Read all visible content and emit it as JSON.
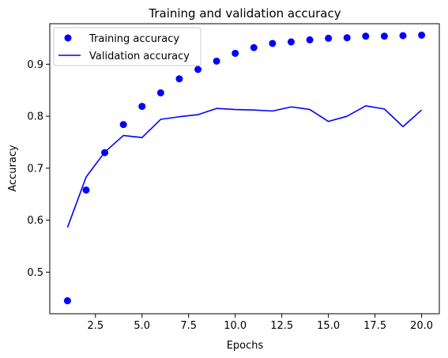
{
  "chart_data": {
    "type": "line",
    "title": "Training and validation accuracy",
    "xlabel": "Epochs",
    "ylabel": "Accuracy",
    "xlim": [
      0.05,
      20.95
    ],
    "ylim": [
      0.42,
      0.978
    ],
    "grid": false,
    "legend_position": "upper-left",
    "x_ticks": [
      2.5,
      5.0,
      7.5,
      10.0,
      12.5,
      15.0,
      17.5,
      20.0
    ],
    "x_tick_labels": [
      "2.5",
      "5.0",
      "7.5",
      "10.0",
      "12.5",
      "15.0",
      "17.5",
      "20.0"
    ],
    "y_ticks": [
      0.5,
      0.6,
      0.7,
      0.8,
      0.9
    ],
    "y_tick_labels": [
      "0.5",
      "0.6",
      "0.7",
      "0.8",
      "0.9"
    ],
    "x": [
      1,
      2,
      3,
      4,
      5,
      6,
      7,
      8,
      9,
      10,
      11,
      12,
      13,
      14,
      15,
      16,
      17,
      18,
      19,
      20
    ],
    "series": [
      {
        "name": "Training accuracy",
        "style": "points",
        "color": "#0000ff",
        "values": [
          0.445,
          0.658,
          0.73,
          0.784,
          0.819,
          0.845,
          0.872,
          0.89,
          0.906,
          0.921,
          0.932,
          0.94,
          0.943,
          0.947,
          0.95,
          0.951,
          0.954,
          0.954,
          0.955,
          0.956
        ]
      },
      {
        "name": "Validation accuracy",
        "style": "line",
        "color": "#0000ff",
        "values": [
          0.586,
          0.683,
          0.731,
          0.763,
          0.759,
          0.794,
          0.799,
          0.803,
          0.815,
          0.813,
          0.812,
          0.81,
          0.818,
          0.813,
          0.79,
          0.8,
          0.82,
          0.814,
          0.78,
          0.812
        ]
      }
    ]
  }
}
